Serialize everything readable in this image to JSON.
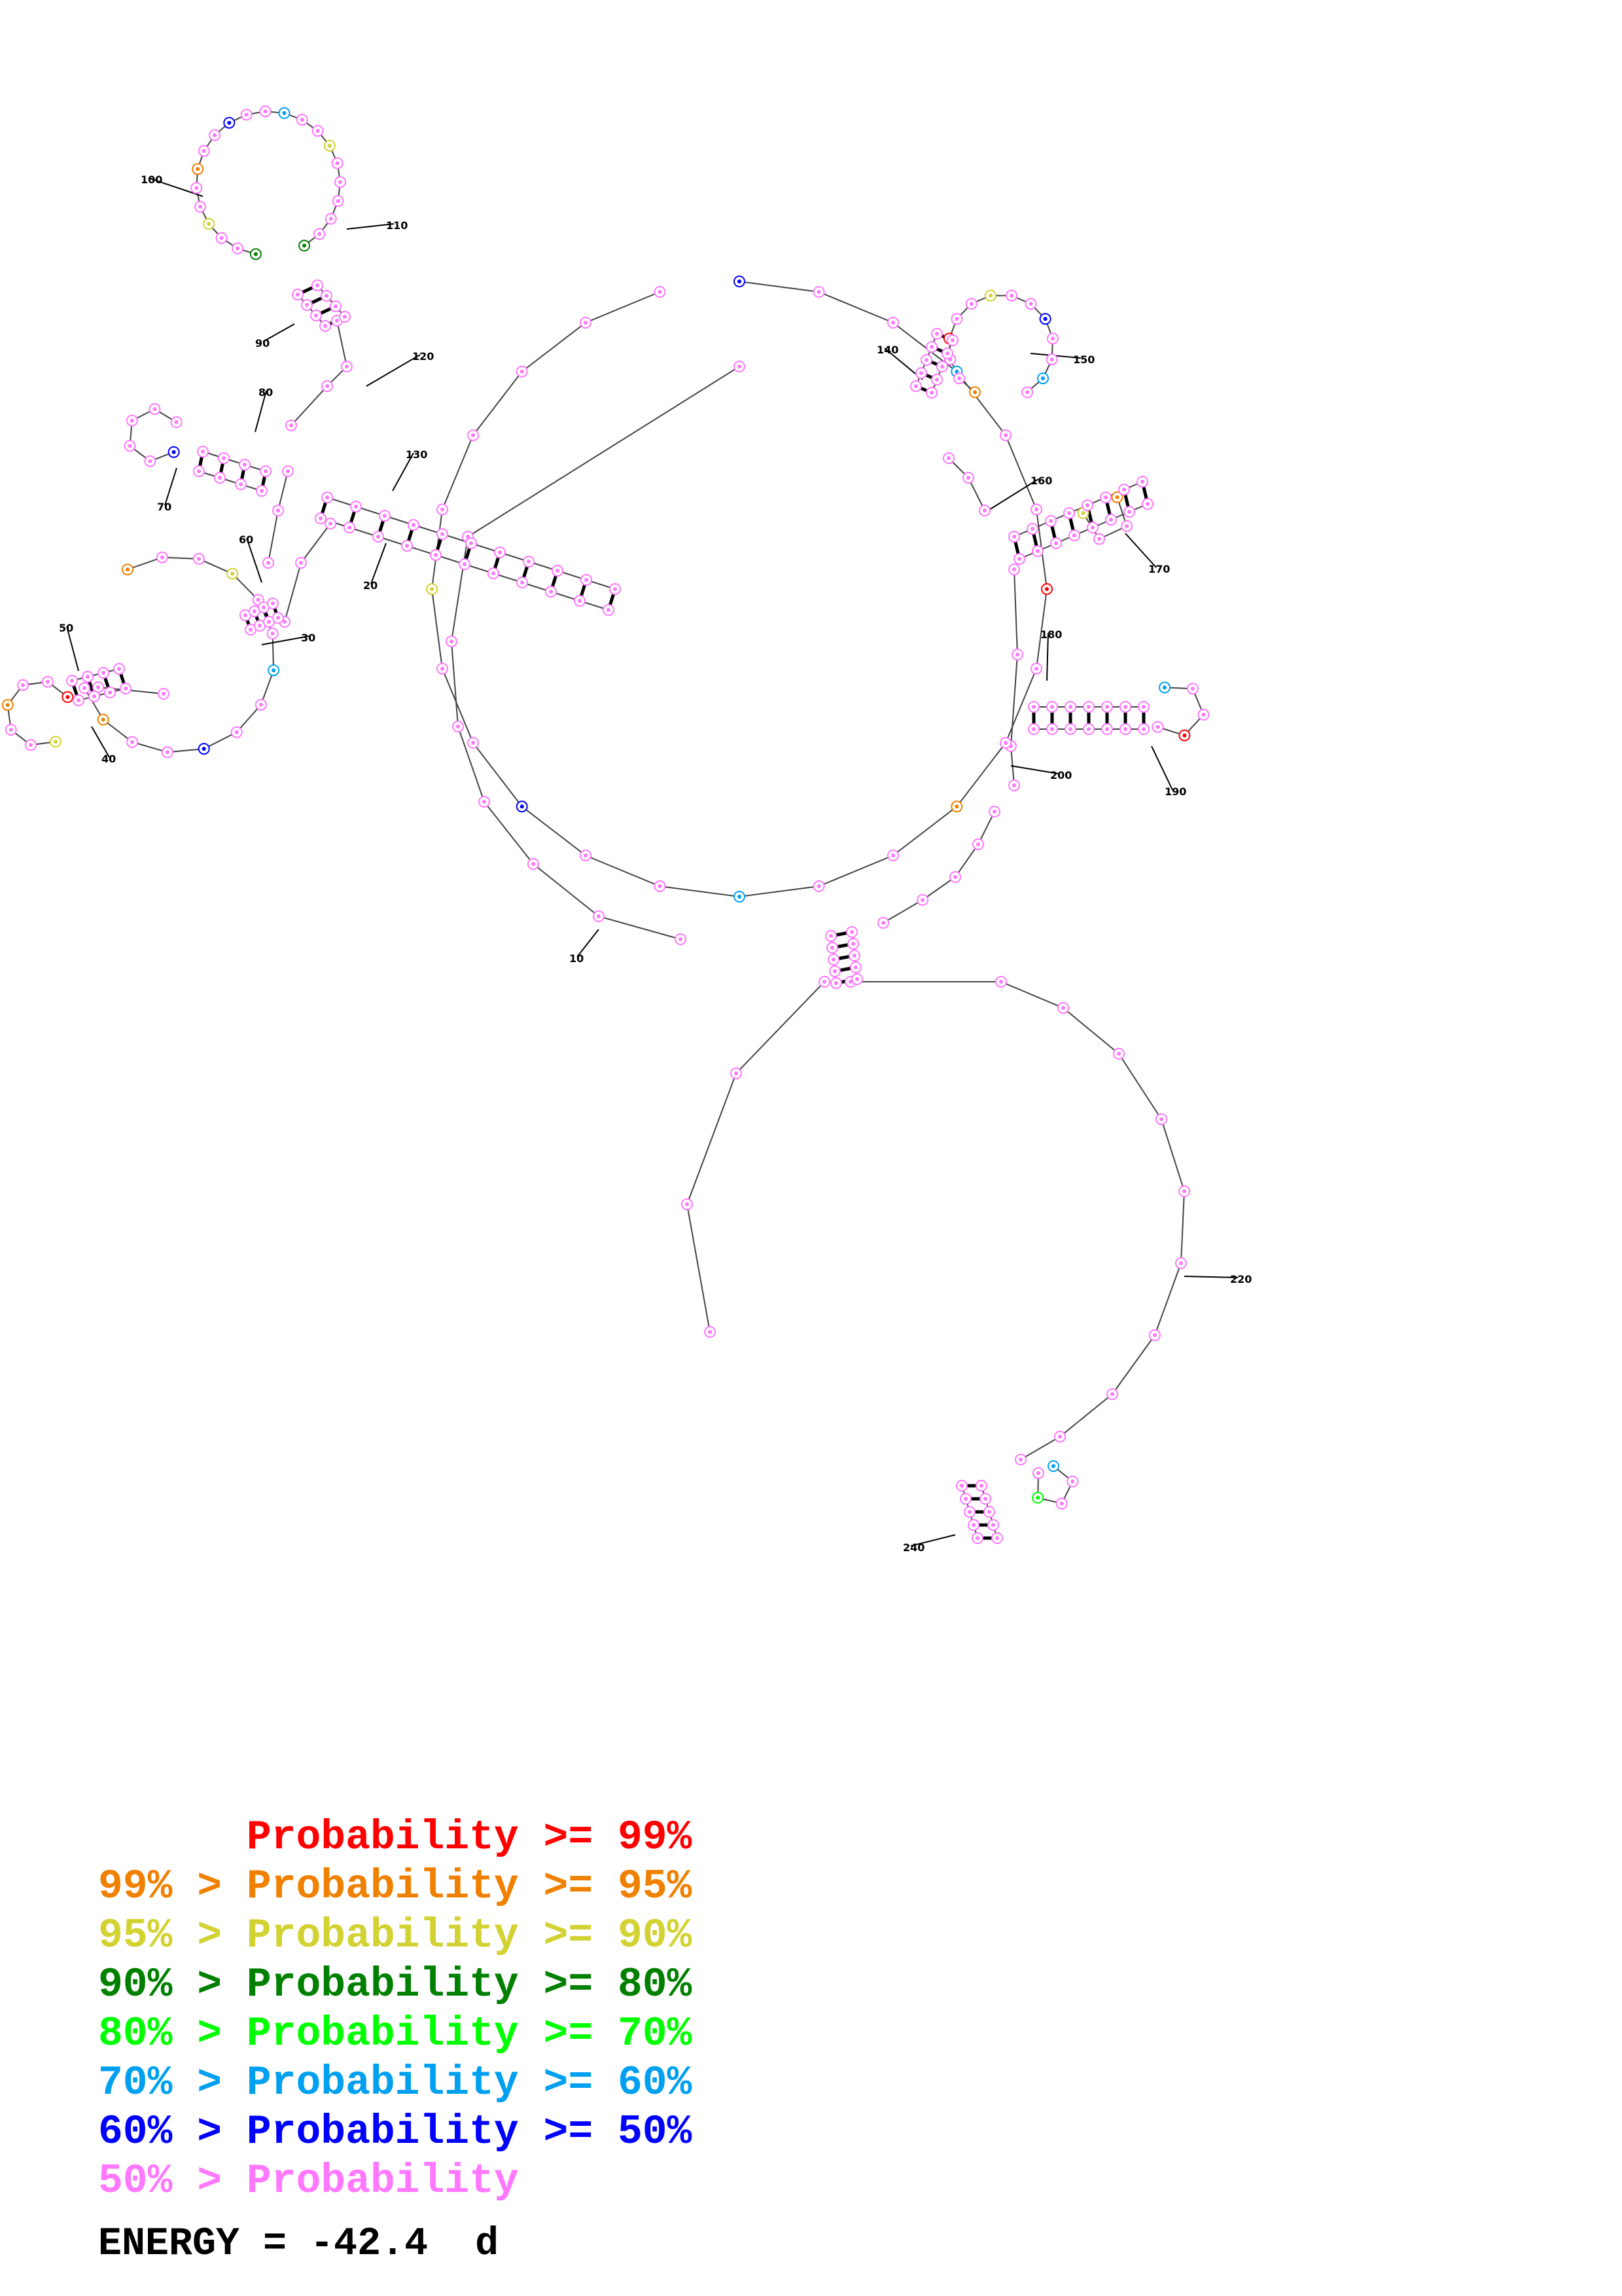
{
  "legend": [
    {
      "prefix": "",
      "mid": "Probability",
      "suffix": ">= 99%",
      "color": "#ff0000"
    },
    {
      "prefix": "99% >",
      "mid": "Probability",
      "suffix": ">= 95%",
      "color": "#f08000"
    },
    {
      "prefix": "95% >",
      "mid": "Probability",
      "suffix": ">= 90%",
      "color": "#d2d232"
    },
    {
      "prefix": "90% >",
      "mid": "Probability",
      "suffix": ">= 80%",
      "color": "#008000"
    },
    {
      "prefix": "80% >",
      "mid": "Probability",
      "suffix": ">= 70%",
      "color": "#00ff00"
    },
    {
      "prefix": "70% >",
      "mid": "Probability",
      "suffix": ">= 60%",
      "color": "#00a0f0"
    },
    {
      "prefix": "60% >",
      "mid": "Probability",
      "suffix": ">= 50%",
      "color": "#0000ff"
    },
    {
      "prefix": "50% >",
      "mid": "Probability",
      "suffix": "",
      "color": "#ff78ff"
    }
  ],
  "energy_label": "ENERGY = -42.4  d",
  "position_labels": [
    "10",
    "20",
    "30",
    "40",
    "50",
    "60",
    "70",
    "80",
    "90",
    "100",
    "110",
    "120",
    "130",
    "140",
    "150",
    "160",
    "170",
    "180",
    "190",
    "200",
    "220",
    "240"
  ],
  "nucleotide_palette": {
    "red": "#ff0000",
    "orange": "#f08000",
    "yellow": "#d2d232",
    "darkgreen": "#008000",
    "green": "#00ff00",
    "cyan": "#00a0f0",
    "blue": "#0000ff",
    "pink": "#ff78ff"
  }
}
